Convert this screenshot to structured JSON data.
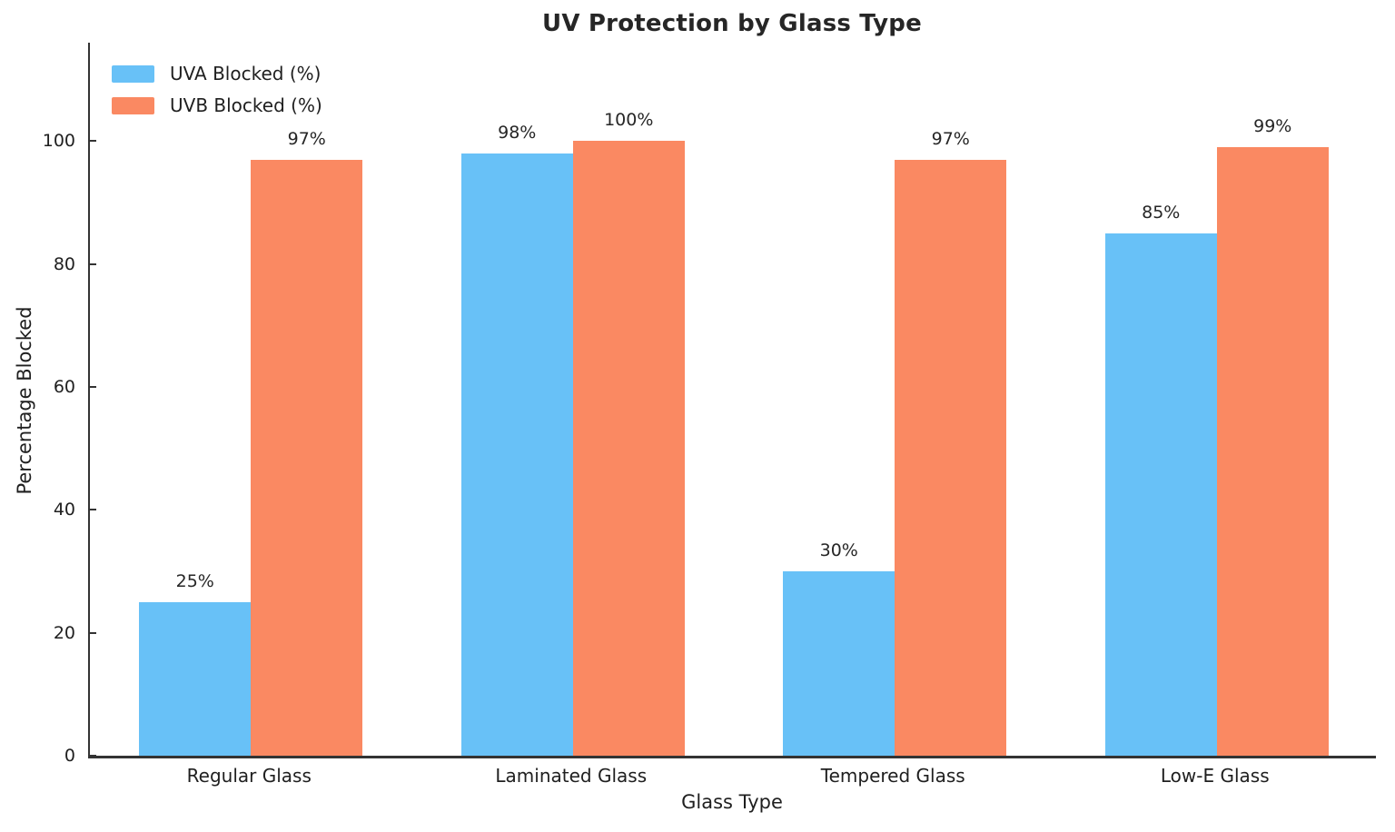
{
  "chart_data": {
    "type": "bar",
    "title": "UV Protection by Glass Type",
    "xlabel": "Glass Type",
    "ylabel": "Percentage Blocked",
    "categories": [
      "Regular Glass",
      "Laminated Glass",
      "Tempered Glass",
      "Low-E Glass"
    ],
    "series": [
      {
        "name": "UVA Blocked (%)",
        "color": "#68c1f7",
        "values": [
          25,
          98,
          30,
          85
        ],
        "data_labels": [
          "25%",
          "98%",
          "30%",
          "85%"
        ]
      },
      {
        "name": "UVB Blocked (%)",
        "color": "#fa8962",
        "values": [
          97,
          100,
          97,
          99
        ],
        "data_labels": [
          "97%",
          "100%",
          "97%",
          "99%"
        ]
      }
    ],
    "yticks": [
      0,
      20,
      40,
      60,
      80,
      100
    ],
    "ytick_labels": [
      "0",
      "20",
      "40",
      "60",
      "80",
      "100"
    ],
    "ylim": [
      0,
      116
    ],
    "grid": false,
    "legend_position": "upper-left",
    "axis_color": "#333333",
    "text_color": "#1f1f1f"
  }
}
